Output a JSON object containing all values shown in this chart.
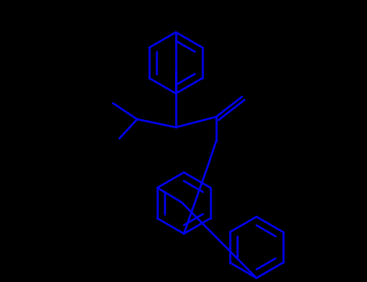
{
  "background_color": "#000000",
  "line_color": "#0000EE",
  "line_width": 1.8,
  "figsize": [
    4.55,
    3.5
  ],
  "dpi": 100,
  "xlim": [
    0,
    455
  ],
  "ylim": [
    350,
    0
  ]
}
